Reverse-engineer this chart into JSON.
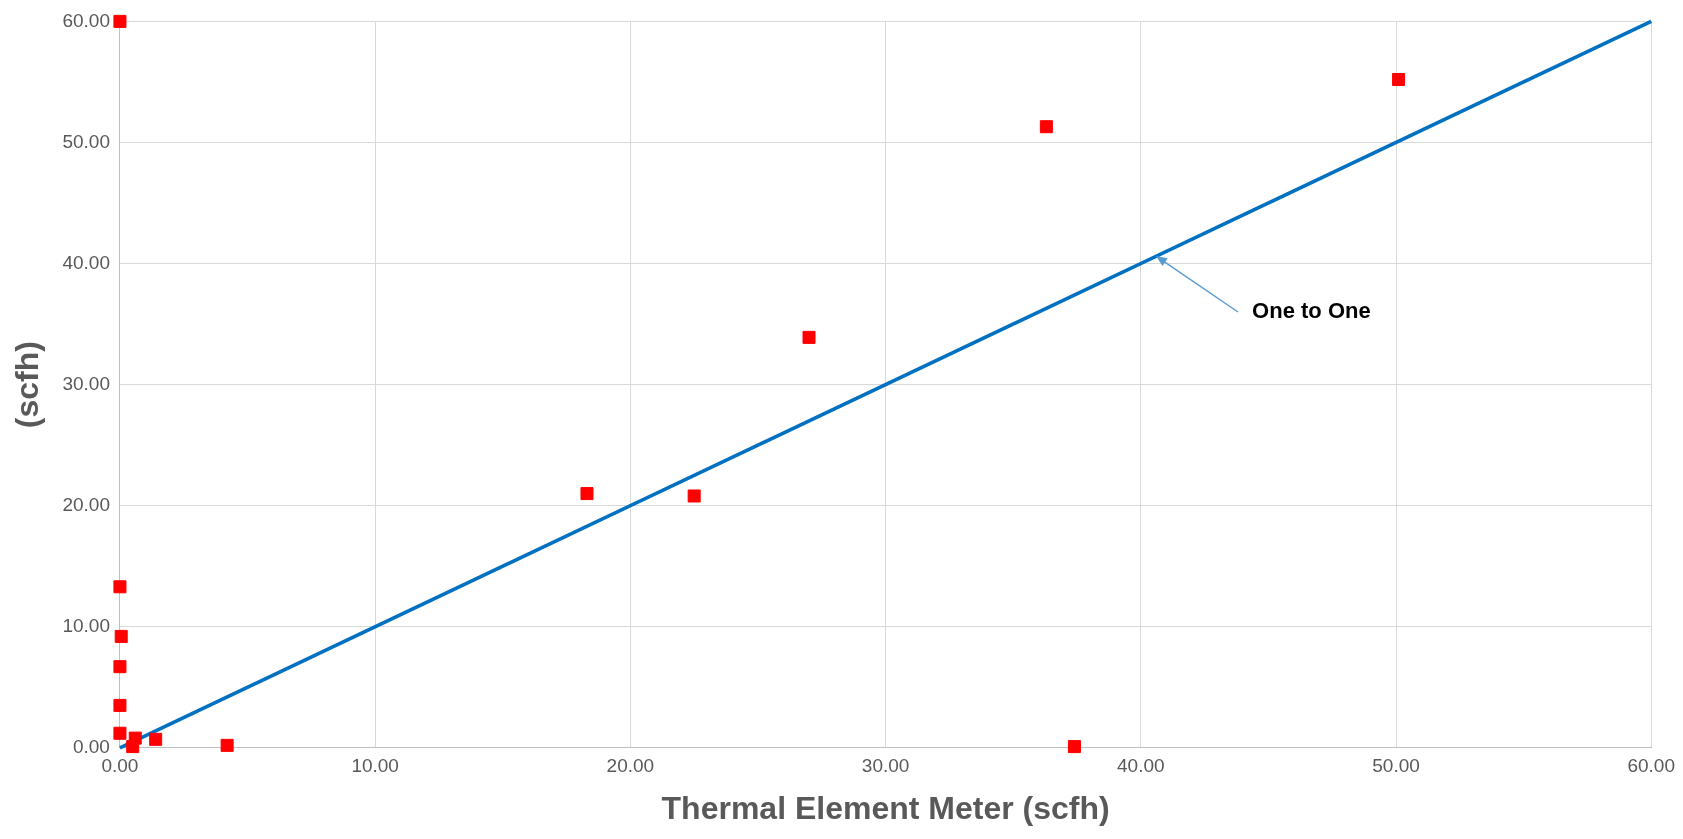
{
  "chart_data": {
    "type": "scatter",
    "xlabel": "Thermal Element Meter (scfh)",
    "ylabel": "(scfh)",
    "xlim": [
      0,
      60
    ],
    "ylim": [
      0,
      60
    ],
    "xticks": [
      {
        "value": 0,
        "label": "0.00"
      },
      {
        "value": 10,
        "label": "10.00"
      },
      {
        "value": 20,
        "label": "20.00"
      },
      {
        "value": 30,
        "label": "30.00"
      },
      {
        "value": 40,
        "label": "40.00"
      },
      {
        "value": 50,
        "label": "50.00"
      },
      {
        "value": 60,
        "label": "60.00"
      }
    ],
    "yticks": [
      {
        "value": 0,
        "label": "0.00"
      },
      {
        "value": 10,
        "label": "10.00"
      },
      {
        "value": 20,
        "label": "20.00"
      },
      {
        "value": 30,
        "label": "30.00"
      },
      {
        "value": 40,
        "label": "40.00"
      },
      {
        "value": 50,
        "label": "50.00"
      },
      {
        "value": 60,
        "label": "60.00"
      }
    ],
    "grid": true,
    "legend": false,
    "marker": "square",
    "series": [
      {
        "color": "#ff0000",
        "x": [
          0,
          0,
          0.05,
          0,
          0,
          0,
          0.1,
          0.3,
          0.6,
          0.5,
          1.4,
          4.2,
          18.3,
          22.5,
          27.0,
          36.3,
          37.4,
          50.1
        ],
        "values": [
          60,
          13.3,
          9.2,
          6.7,
          3.5,
          1.2,
          null,
          null,
          0.8,
          0.1,
          0.7,
          0.2,
          21.0,
          20.8,
          33.9,
          51.3,
          0.1,
          55.2
        ]
      },
      {
        "type": "line",
        "color": "#0070c0",
        "marker": "none",
        "line_style": "solid",
        "x": [
          0,
          60
        ],
        "values": [
          0,
          60
        ]
      }
    ],
    "annotations": [
      {
        "text": "One to One",
        "x": 40.6,
        "y": 40.6
      }
    ]
  }
}
